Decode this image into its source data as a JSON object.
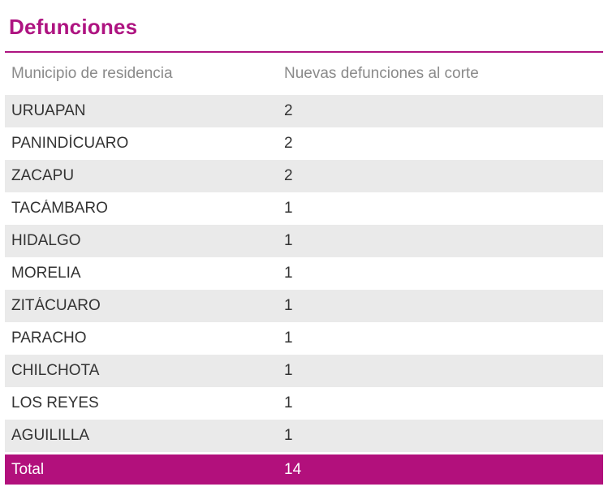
{
  "title": "Defunciones",
  "colors": {
    "accent": "#AE1481",
    "total_bg": "#B2107C",
    "row_alt_bg": "#EAEAEA",
    "header_text": "#8A8A8A",
    "row_text": "#333333"
  },
  "table": {
    "columns": [
      "Municipio de residencia",
      "Nuevas defunciones al corte"
    ],
    "rows": [
      {
        "municipio": "URUAPAN",
        "value": "2"
      },
      {
        "municipio": "PANINDÍCUARO",
        "value": "2"
      },
      {
        "municipio": "ZACAPU",
        "value": "2"
      },
      {
        "municipio": "TACÁMBARO",
        "value": "1"
      },
      {
        "municipio": "HIDALGO",
        "value": "1"
      },
      {
        "municipio": "MORELIA",
        "value": "1"
      },
      {
        "municipio": "ZITÁCUARO",
        "value": "1"
      },
      {
        "municipio": "PARACHO",
        "value": "1"
      },
      {
        "municipio": "CHILCHOTA",
        "value": "1"
      },
      {
        "municipio": "LOS REYES",
        "value": "1"
      },
      {
        "municipio": "AGUILILLA",
        "value": "1"
      }
    ],
    "total_label": "Total",
    "total_value": "14"
  },
  "chart_data": {
    "type": "table",
    "title": "Defunciones",
    "columns": [
      "Municipio de residencia",
      "Nuevas defunciones al corte"
    ],
    "categories": [
      "URUAPAN",
      "PANINDÍCUARO",
      "ZACAPU",
      "TACÁMBARO",
      "HIDALGO",
      "MORELIA",
      "ZITÁCUARO",
      "PARACHO",
      "CHILCHOTA",
      "LOS REYES",
      "AGUILILLA"
    ],
    "values": [
      2,
      2,
      2,
      1,
      1,
      1,
      1,
      1,
      1,
      1,
      1
    ],
    "total": {
      "label": "Total",
      "value": 14
    },
    "layout_hints": {
      "striped_rows": true,
      "total_row_highlighted": true,
      "accent_color": "#AE1481"
    }
  }
}
